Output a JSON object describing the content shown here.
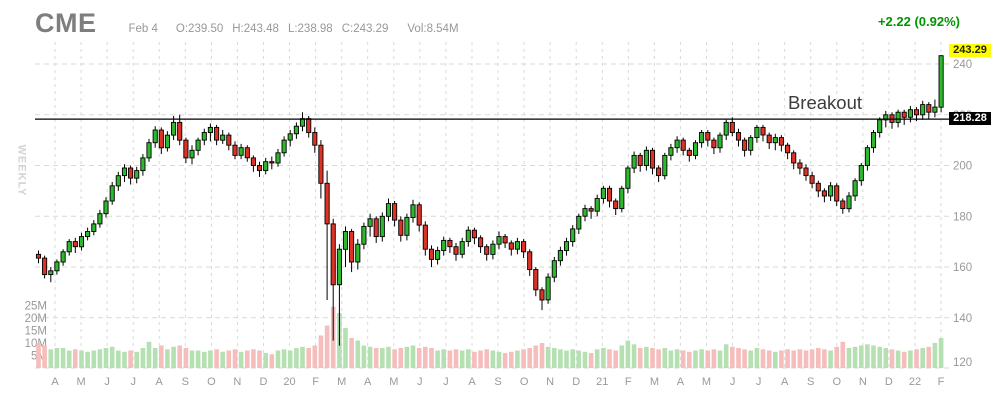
{
  "header": {
    "symbol": "CME",
    "date": "Feb 4",
    "open": "O:239.50",
    "high": "H:243.48",
    "low": "L:238.98",
    "close": "C:243.29",
    "volume": "Vol:8.54M",
    "change": "+2.22 (0.92%)"
  },
  "left_axis": {
    "timeframe": "WEEKLY"
  },
  "right_axis": {
    "last_price_label": "243.29",
    "breakout_level_label": "218.28"
  },
  "annotation": {
    "breakout_text": "Breakout"
  },
  "colors": {
    "candle_up": "#2db82d",
    "candle_down": "#dd3226",
    "candle_outline": "#000000",
    "volume_up": "#b5e0b2",
    "volume_down": "#f5bdbc",
    "grid": "#d9d9d9",
    "axis_text": "#999999",
    "breakout_line": "#000000",
    "change_text": "#009600",
    "last_price_badge_bg": "#ffff00",
    "level_badge_bg": "#000000"
  },
  "chart_data": {
    "type": "candlestick",
    "title": "CME weekly candlestick chart with volume",
    "timeframe": "WEEKLY",
    "x_axis_labels": [
      "A",
      "M",
      "J",
      "J",
      "A",
      "S",
      "O",
      "N",
      "D",
      "20",
      "F",
      "M",
      "A",
      "M",
      "J",
      "J",
      "A",
      "S",
      "O",
      "N",
      "D",
      "21",
      "F",
      "M",
      "A",
      "M",
      "J",
      "J",
      "A",
      "S",
      "O",
      "N",
      "D",
      "22",
      "F"
    ],
    "price_axis": {
      "min": 120,
      "max": 245,
      "gridlines": [
        240,
        220,
        200,
        180,
        160,
        140,
        120
      ]
    },
    "volume_axis": {
      "ticks_millions": [
        25,
        20,
        15,
        10,
        5
      ]
    },
    "breakout_level": 218.28,
    "last_price": 243.29,
    "candles_format": [
      "open",
      "high",
      "low",
      "close",
      "volume_millions"
    ],
    "candles": [
      [
        165,
        166.5,
        161.5,
        163.5,
        10
      ],
      [
        163.5,
        164.5,
        155.5,
        157,
        9
      ],
      [
        157,
        160,
        154,
        158.5,
        7.5
      ],
      [
        158.5,
        163,
        157,
        162,
        8
      ],
      [
        162,
        167,
        160.5,
        166,
        8
      ],
      [
        166,
        171,
        164.5,
        170,
        7
      ],
      [
        170,
        171.5,
        165.5,
        168,
        7.5
      ],
      [
        168,
        173.5,
        166.5,
        172,
        7
      ],
      [
        172,
        175.5,
        170.5,
        174,
        6.5
      ],
      [
        174,
        178.5,
        172.5,
        177,
        7
      ],
      [
        177,
        182.5,
        175.5,
        181,
        7.5
      ],
      [
        181,
        187.5,
        179.5,
        186,
        8
      ],
      [
        186,
        193.5,
        184.5,
        192,
        8.5
      ],
      [
        192,
        197.5,
        190,
        196,
        7
      ],
      [
        196,
        200.5,
        193.5,
        199,
        6.5
      ],
      [
        199,
        200,
        192.5,
        195,
        7
      ],
      [
        195,
        199.5,
        193,
        198,
        6.5
      ],
      [
        198,
        204.5,
        196,
        203,
        8
      ],
      [
        203,
        210.5,
        201.5,
        209,
        10.5
      ],
      [
        209,
        215.5,
        207,
        214,
        8
      ],
      [
        214,
        215,
        204.5,
        207,
        9
      ],
      [
        207,
        213.5,
        205.5,
        212,
        7.5
      ],
      [
        212,
        219.5,
        210,
        217,
        8.5
      ],
      [
        217,
        220,
        208,
        210,
        9
      ],
      [
        210,
        211,
        201,
        203,
        8
      ],
      [
        203,
        208,
        200.5,
        206,
        7
      ],
      [
        206,
        211,
        204,
        210,
        7
      ],
      [
        210,
        214.5,
        208,
        213,
        6.5
      ],
      [
        213,
        216.5,
        209.5,
        215,
        7
      ],
      [
        215,
        216,
        208,
        210,
        7.5
      ],
      [
        210,
        214,
        208.5,
        212,
        6.5
      ],
      [
        212,
        213,
        206,
        208,
        7
      ],
      [
        208,
        209.5,
        202.5,
        204,
        7.5
      ],
      [
        204,
        208.5,
        202.5,
        207,
        6.5
      ],
      [
        207,
        208,
        201.5,
        203,
        7
      ],
      [
        203,
        204,
        197.5,
        200,
        7.5
      ],
      [
        200,
        201.5,
        195.5,
        198,
        7
      ],
      [
        198,
        203,
        196.5,
        201.5,
        6
      ],
      [
        201.5,
        203.5,
        198.5,
        201,
        5.5
      ],
      [
        201,
        206.5,
        199.5,
        205,
        7
      ],
      [
        205,
        211.5,
        203.5,
        210,
        7.5
      ],
      [
        210,
        214,
        207.5,
        212.5,
        7
      ],
      [
        212.5,
        217,
        210.5,
        215.5,
        8
      ],
      [
        215.5,
        221,
        213.5,
        218.5,
        8.5
      ],
      [
        218.5,
        219.5,
        211,
        213,
        8
      ],
      [
        213,
        215,
        205,
        208,
        9
      ],
      [
        208,
        210,
        187,
        193,
        13
      ],
      [
        193,
        198,
        147,
        177,
        17
      ],
      [
        177,
        179,
        131,
        153,
        24.5
      ],
      [
        153,
        169,
        129,
        167,
        22
      ],
      [
        167,
        176,
        160,
        174,
        16
      ],
      [
        174,
        175,
        158,
        162,
        12
      ],
      [
        162,
        171,
        159,
        169,
        11
      ],
      [
        169,
        177.5,
        167,
        176,
        9
      ],
      [
        176,
        181,
        172,
        179,
        8.5
      ],
      [
        179,
        180,
        169.5,
        172,
        8
      ],
      [
        172,
        181.5,
        170,
        180,
        8
      ],
      [
        180,
        187,
        178,
        185,
        8.5
      ],
      [
        185,
        186,
        176,
        178.5,
        7.5
      ],
      [
        178.5,
        180,
        170,
        172.5,
        8
      ],
      [
        172.5,
        181,
        170.5,
        179.5,
        8.5
      ],
      [
        179.5,
        186.5,
        177.5,
        184.5,
        9
      ],
      [
        184.5,
        185.5,
        174,
        176.5,
        8
      ],
      [
        176.5,
        178,
        164.5,
        167,
        8.5
      ],
      [
        167,
        168.5,
        160,
        163,
        8
      ],
      [
        163,
        168,
        161,
        166.5,
        7
      ],
      [
        166.5,
        172,
        164.5,
        170.5,
        7.5
      ],
      [
        170.5,
        171.5,
        165.5,
        168,
        7
      ],
      [
        168,
        169.5,
        162.5,
        165,
        7.5
      ],
      [
        165,
        171.5,
        163.5,
        170,
        7
      ],
      [
        170,
        176,
        168,
        174.5,
        7.5
      ],
      [
        174.5,
        175.5,
        169,
        171.5,
        6.5
      ],
      [
        171.5,
        172.5,
        165.5,
        168,
        7
      ],
      [
        168,
        169,
        162.5,
        165,
        7.5
      ],
      [
        165,
        170.5,
        163,
        169,
        7
      ],
      [
        169,
        174,
        167,
        172,
        6.5
      ],
      [
        172,
        173,
        167.5,
        169.5,
        6
      ],
      [
        169.5,
        170.5,
        164.5,
        167,
        6.5
      ],
      [
        167,
        171.5,
        165,
        170,
        7
      ],
      [
        170,
        171,
        163.5,
        166,
        7.5
      ],
      [
        166,
        167,
        156.5,
        159,
        8
      ],
      [
        159,
        160,
        148.5,
        151,
        9
      ],
      [
        151,
        152,
        143,
        147,
        10
      ],
      [
        147,
        157.5,
        145.5,
        156,
        8.5
      ],
      [
        156,
        164,
        154,
        162.5,
        8
      ],
      [
        162.5,
        168,
        160.5,
        166.5,
        7.5
      ],
      [
        166.5,
        171.5,
        164.5,
        170,
        7
      ],
      [
        170,
        176.5,
        168,
        175,
        7.5
      ],
      [
        175,
        181,
        173,
        180,
        7
      ],
      [
        180,
        184.5,
        178,
        183,
        6.5
      ],
      [
        183,
        184,
        179,
        182,
        6
      ],
      [
        182,
        188.5,
        180,
        187,
        7.5
      ],
      [
        187,
        192,
        185,
        191,
        8
      ],
      [
        191,
        192,
        183.5,
        186,
        7.5
      ],
      [
        186,
        187,
        180.5,
        183,
        7
      ],
      [
        183,
        192,
        181.5,
        191,
        9
      ],
      [
        191,
        200,
        189,
        199,
        11
      ],
      [
        199,
        205.5,
        197,
        204,
        9.5
      ],
      [
        204,
        205,
        197.5,
        200,
        8
      ],
      [
        200,
        207.5,
        198,
        206,
        8.5
      ],
      [
        206,
        207,
        196.5,
        199,
        8
      ],
      [
        199,
        200,
        193.5,
        196,
        7.5
      ],
      [
        196,
        205,
        194.5,
        204,
        8
      ],
      [
        204,
        208.5,
        202,
        207,
        7
      ],
      [
        207,
        211.5,
        205,
        210,
        7.5
      ],
      [
        210,
        211,
        204,
        206,
        7
      ],
      [
        206,
        207,
        201.5,
        204,
        6.5
      ],
      [
        204,
        210,
        202.5,
        209,
        7
      ],
      [
        209,
        214,
        207,
        213,
        7.5
      ],
      [
        213,
        214,
        207.5,
        210,
        7
      ],
      [
        210,
        211,
        204.5,
        207,
        7.5
      ],
      [
        207,
        213,
        205,
        212,
        7
      ],
      [
        212,
        218,
        210,
        217,
        9.5
      ],
      [
        217,
        219,
        211.5,
        213,
        8.5
      ],
      [
        213,
        214.5,
        207.5,
        210,
        8
      ],
      [
        210,
        211,
        203.5,
        206,
        7.5
      ],
      [
        206,
        212,
        204,
        211,
        7
      ],
      [
        211,
        216,
        209,
        215,
        8
      ],
      [
        215,
        216,
        209.5,
        212,
        7.5
      ],
      [
        212,
        213,
        206.5,
        209,
        7
      ],
      [
        209,
        212.5,
        206,
        211,
        6.5
      ],
      [
        211,
        212,
        205.5,
        208,
        7
      ],
      [
        208,
        209,
        202.5,
        205,
        7.5
      ],
      [
        205,
        206,
        198.5,
        201,
        7
      ],
      [
        201,
        202.5,
        196.5,
        199,
        7.5
      ],
      [
        199,
        200.5,
        194,
        196,
        7
      ],
      [
        196,
        197.5,
        191,
        193,
        7.5
      ],
      [
        193,
        194,
        187.5,
        190,
        8
      ],
      [
        190,
        191,
        185.5,
        188,
        7.5
      ],
      [
        188,
        193.5,
        186,
        192,
        7
      ],
      [
        192,
        193,
        184,
        186,
        8.5
      ],
      [
        186,
        187,
        181,
        183,
        10.5
      ],
      [
        183,
        189.5,
        181.5,
        188,
        8
      ],
      [
        188,
        195,
        186,
        194,
        8.5
      ],
      [
        194,
        201,
        192,
        200,
        9
      ],
      [
        200,
        208,
        198,
        207,
        9.5
      ],
      [
        207,
        214,
        205,
        213,
        9
      ],
      [
        213,
        219,
        211,
        218,
        8.5
      ],
      [
        218,
        221.5,
        215,
        220,
        8
      ],
      [
        220,
        221,
        214.5,
        217,
        7.5
      ],
      [
        217,
        222,
        215,
        221,
        7
      ],
      [
        221,
        222,
        216,
        219,
        6.5
      ],
      [
        219,
        223.5,
        217,
        222,
        7
      ],
      [
        222,
        223,
        217.5,
        220,
        7.5
      ],
      [
        220,
        225.5,
        218,
        224,
        8
      ],
      [
        224,
        225,
        218.5,
        221,
        8.5
      ],
      [
        221,
        226,
        219,
        223,
        10
      ],
      [
        223,
        243.48,
        221,
        243.29,
        12
      ]
    ]
  }
}
